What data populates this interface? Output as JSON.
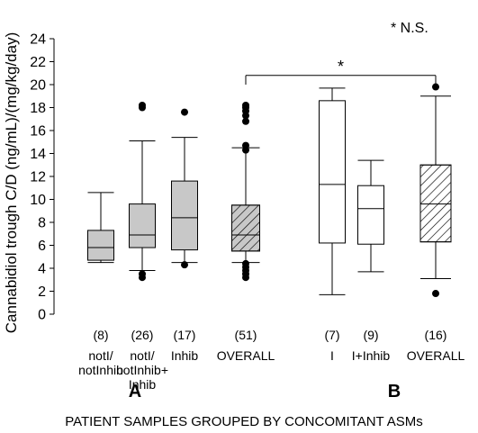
{
  "chart_data": {
    "type": "box",
    "ylabel": "Cannabidiol trough C/D (ng/mL)/(mg/kg/day)",
    "xlabel": "PATIENT SAMPLES GROUPED BY CONCOMITANT ASMs",
    "ylim": [
      0,
      24
    ],
    "yticks": [
      0,
      2,
      4,
      6,
      8,
      10,
      12,
      14,
      16,
      18,
      20,
      22,
      24
    ],
    "legend_note": "* N.S.",
    "significance": {
      "label": "*",
      "from_group": "OVERALL (51)",
      "to_group": "OVERALL (16)"
    },
    "groups": [
      {
        "label": "A",
        "boxes": [
          {
            "category": [
              "notI/",
              "notInhib"
            ],
            "n": "(8)",
            "fill": "#c8c8c8",
            "hatched": false,
            "whisker_low": 4.5,
            "q1": 4.7,
            "median": 5.8,
            "q3": 7.3,
            "whisker_high": 10.6,
            "outliers": []
          },
          {
            "category": [
              "notI/",
              "notInhib+",
              "Inhib"
            ],
            "n": "(26)",
            "fill": "#c8c8c8",
            "hatched": false,
            "whisker_low": 3.8,
            "q1": 5.8,
            "median": 6.9,
            "q3": 9.6,
            "whisker_high": 15.1,
            "outliers": [
              3.2,
              3.5,
              18.0,
              18.2
            ]
          },
          {
            "category": [
              "Inhib"
            ],
            "n": "(17)",
            "fill": "#c8c8c8",
            "hatched": false,
            "whisker_low": 4.5,
            "q1": 5.6,
            "median": 8.4,
            "q3": 11.6,
            "whisker_high": 15.4,
            "outliers": [
              4.3,
              17.6
            ]
          },
          {
            "category": [
              "OVERALL"
            ],
            "n": "(51)",
            "fill": "#c8c8c8",
            "hatched": true,
            "whisker_low": 4.5,
            "q1": 5.5,
            "median": 6.9,
            "q3": 9.5,
            "whisker_high": 14.5,
            "outliers": [
              3.2,
              3.5,
              3.8,
              4.1,
              4.4,
              14.3,
              14.7,
              16.8,
              17.3,
              17.7,
              18.0,
              18.2
            ]
          }
        ]
      },
      {
        "label": "B",
        "boxes": [
          {
            "category": [
              "I"
            ],
            "n": "(7)",
            "fill": "#ffffff",
            "hatched": false,
            "whisker_low": 1.7,
            "q1": 6.2,
            "median": 11.3,
            "q3": 18.6,
            "whisker_high": 19.7,
            "outliers": []
          },
          {
            "category": [
              "I+Inhib"
            ],
            "n": "(9)",
            "fill": "#ffffff",
            "hatched": false,
            "whisker_low": 3.7,
            "q1": 6.1,
            "median": 9.2,
            "q3": 11.2,
            "whisker_high": 13.4,
            "outliers": []
          },
          {
            "category": [
              "OVERALL"
            ],
            "n": "(16)",
            "fill": "#ffffff",
            "hatched": true,
            "whisker_low": 3.1,
            "q1": 6.3,
            "median": 9.6,
            "q3": 13.0,
            "whisker_high": 19.0,
            "outliers": [
              1.8,
              19.8
            ]
          }
        ]
      }
    ]
  }
}
